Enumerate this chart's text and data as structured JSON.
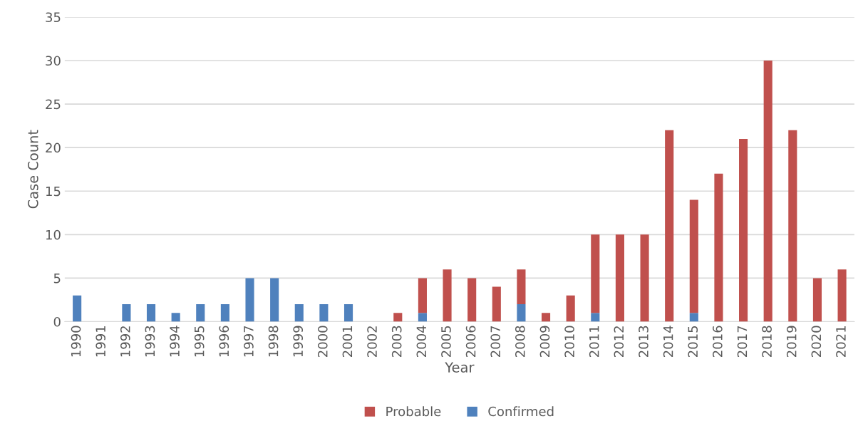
{
  "chart_data": {
    "type": "bar",
    "stacked": true,
    "xlabel": "Year",
    "ylabel": "Case Count",
    "categories": [
      "1990",
      "1991",
      "1992",
      "1993",
      "1994",
      "1995",
      "1996",
      "1997",
      "1998",
      "1999",
      "2000",
      "2001",
      "2002",
      "2003",
      "2004",
      "2005",
      "2006",
      "2007",
      "2008",
      "2009",
      "2010",
      "2011",
      "2012",
      "2013",
      "2014",
      "2015",
      "2016",
      "2017",
      "2018",
      "2019",
      "2020",
      "2021"
    ],
    "series": [
      {
        "name": "Confirmed",
        "color": "#4f81bd",
        "values": [
          3,
          0,
          2,
          2,
          1,
          2,
          2,
          5,
          5,
          2,
          2,
          2,
          0,
          0,
          1,
          0,
          0,
          0,
          2,
          0,
          0,
          1,
          0,
          0,
          0,
          1,
          0,
          0,
          0,
          0,
          0,
          0
        ]
      },
      {
        "name": "Probable",
        "color": "#c0504d",
        "values": [
          0,
          0,
          0,
          0,
          0,
          0,
          0,
          0,
          0,
          0,
          0,
          0,
          0,
          1,
          4,
          6,
          5,
          4,
          4,
          1,
          3,
          9,
          10,
          10,
          22,
          13,
          17,
          21,
          30,
          22,
          5,
          6
        ]
      }
    ],
    "ylim": [
      0,
      35
    ],
    "yticks": [
      0,
      5,
      10,
      15,
      20,
      25,
      30,
      35
    ],
    "grid": "y",
    "legend": "bottom"
  }
}
